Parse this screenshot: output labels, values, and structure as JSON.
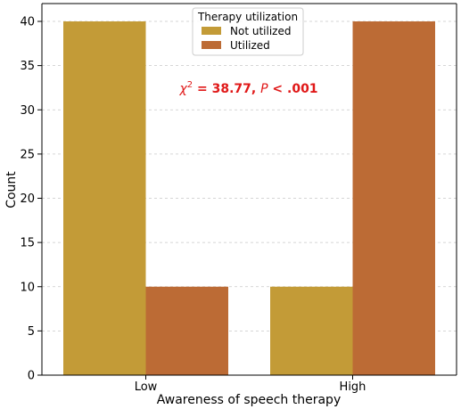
{
  "chart_data": {
    "type": "bar",
    "categories": [
      "Low",
      "High"
    ],
    "series": [
      {
        "name": "Not utilized",
        "values": [
          40,
          10
        ],
        "color": "#C39B37"
      },
      {
        "name": "Utilized",
        "values": [
          10,
          40
        ],
        "color": "#BC6B35"
      }
    ],
    "xlabel": "Awareness of speech therapy",
    "ylabel": "Count",
    "ylim": [
      0,
      40
    ],
    "yticks": [
      0,
      5,
      10,
      15,
      20,
      25,
      30,
      35,
      40
    ],
    "grid": "horizontal dashed",
    "legend": {
      "title": "Therapy utilization",
      "placement": "top-center"
    },
    "annotation": {
      "symbol": "χ",
      "superscript": "2",
      "equals_text": " = 38.77, ",
      "p_symbol": "P",
      "p_text": " < .001",
      "color": "#E01818"
    }
  }
}
